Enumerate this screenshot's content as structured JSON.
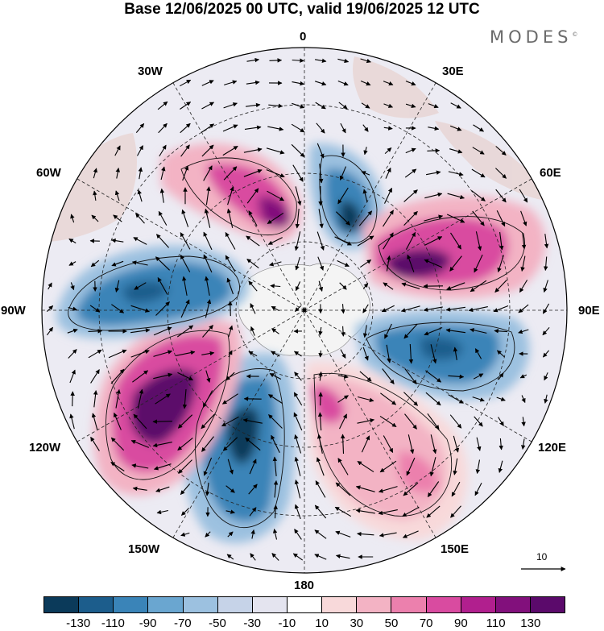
{
  "title": "Base 12/06/2025 00 UTC, valid 19/06/2025 12 UTC",
  "logo": {
    "text": "MODES",
    "mark": "©"
  },
  "map": {
    "projection": "polar-stereographic-south",
    "longitude_labels": {
      "top": "0",
      "top_right": "30E",
      "right_upper": "60E",
      "right": "90E",
      "right_lower": "120E",
      "bottom_right": "150E",
      "bottom": "180",
      "bottom_left": "150W",
      "left_lower": "120W",
      "left": "90W",
      "left_upper": "60W",
      "top_left": "30W"
    },
    "vector_reference": {
      "label": "10"
    }
  },
  "colorbar": {
    "colors": [
      "#0b3a5a",
      "#1c5d8c",
      "#3a84b8",
      "#6aa6d0",
      "#9cc1e0",
      "#c6d3e8",
      "#e4e4ef",
      "#ffffff",
      "#f8d9da",
      "#f3b3c4",
      "#ec80ad",
      "#d94ba0",
      "#b11f8e",
      "#82107c",
      "#5b0a6b"
    ],
    "tick_labels": [
      "-130",
      "-110",
      "-90",
      "-70",
      "-50",
      "-30",
      "-10",
      "10",
      "30",
      "50",
      "70",
      "90",
      "110",
      "130"
    ]
  }
}
